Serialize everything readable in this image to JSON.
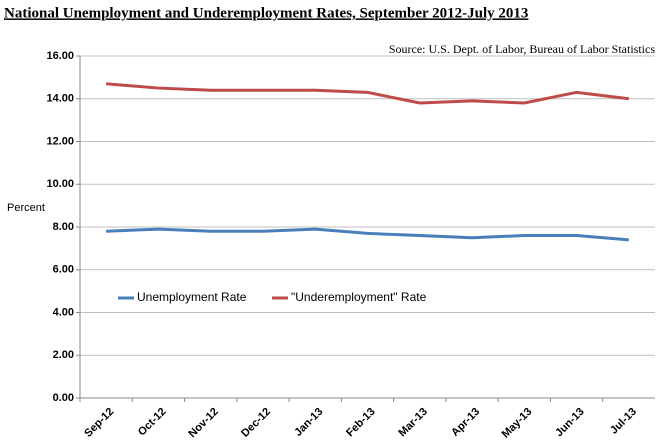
{
  "chart_data": {
    "type": "line",
    "title": "National Unemployment and Underemployment Rates, September 2012-July 2013",
    "annotation": "Source: U.S. Dept. of Labor, Bureau of Labor Statistics",
    "ylabel": "Percent",
    "categories": [
      "Sep-12",
      "Oct-12",
      "Nov-12",
      "Dec-12",
      "Jan-13",
      "Feb-13",
      "Mar-13",
      "Apr-13",
      "May-13",
      "Jun-13",
      "Jul-13"
    ],
    "series": [
      {
        "name": "Unemployment Rate",
        "color": "#4a7ebb",
        "values": [
          7.8,
          7.9,
          7.8,
          7.8,
          7.9,
          7.7,
          7.6,
          7.5,
          7.6,
          7.6,
          7.4
        ]
      },
      {
        "name": "\"Underemployment\" Rate",
        "color": "#be4b48",
        "values": [
          14.7,
          14.5,
          14.4,
          14.4,
          14.4,
          14.3,
          13.8,
          13.9,
          13.8,
          14.3,
          14.0
        ]
      }
    ],
    "ylim": [
      0,
      16
    ],
    "yticks": [
      {
        "value": 0,
        "label": "0.00"
      },
      {
        "value": 2,
        "label": "2.00"
      },
      {
        "value": 4,
        "label": "4.00"
      },
      {
        "value": 6,
        "label": "6.00"
      },
      {
        "value": 8,
        "label": "8.00"
      },
      {
        "value": 10,
        "label": "10.00"
      },
      {
        "value": 12,
        "label": "12.00"
      },
      {
        "value": 14,
        "label": "14.00"
      },
      {
        "value": 16,
        "label": "16.00"
      }
    ],
    "grid": true
  }
}
